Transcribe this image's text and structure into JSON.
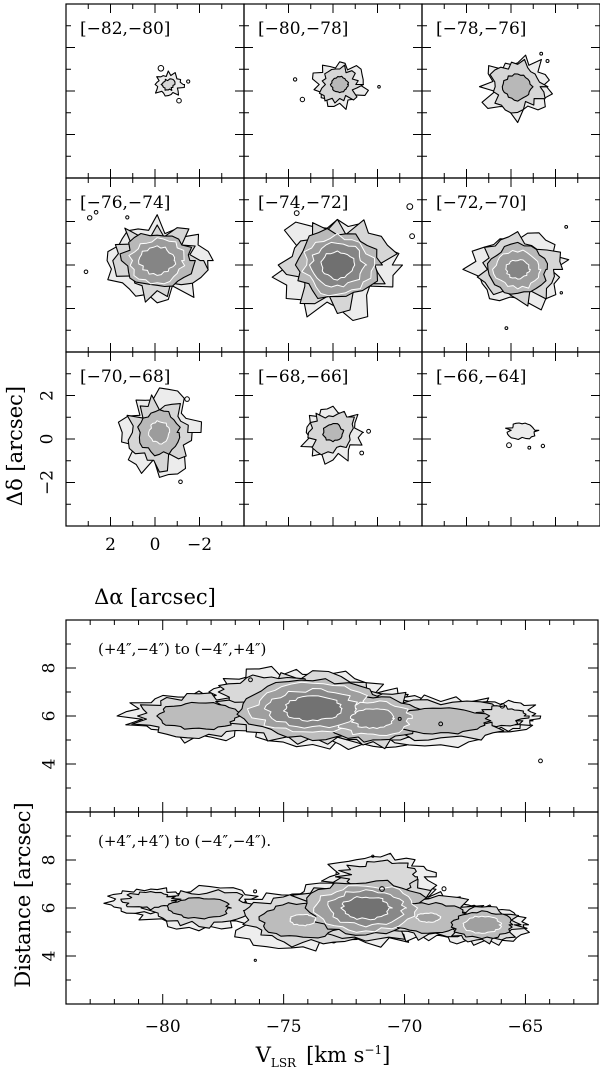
{
  "chart_data": [
    {
      "type": "heatmap",
      "description_of_values": "channel maps of integrated intensity, grayscale with contour levels",
      "grid": "3x3",
      "panels": [
        {
          "label": "[−82,−80]",
          "peak": 0.35,
          "cx": -0.6,
          "cy": 0.3,
          "rx": 0.7,
          "ry": 0.6
        },
        {
          "label": "[−80,−78]",
          "peak": 0.55,
          "cx": -0.3,
          "cy": 0.3,
          "rx": 1.2,
          "ry": 1.1
        },
        {
          "label": "[−78,−76]",
          "peak": 0.6,
          "cx": -0.3,
          "cy": 0.2,
          "rx": 1.5,
          "ry": 1.4
        },
        {
          "label": "[−76,−74]",
          "peak": 0.9,
          "cx": -0.1,
          "cy": 0.2,
          "rx": 2.2,
          "ry": 1.8
        },
        {
          "label": "[−74,−72]",
          "peak": 1.0,
          "cx": -0.2,
          "cy": 0.0,
          "rx": 2.5,
          "ry": 2.1
        },
        {
          "label": "[−72,−70]",
          "peak": 0.85,
          "cx": -0.3,
          "cy": -0.2,
          "rx": 2.0,
          "ry": 1.7
        },
        {
          "label": "[−70,−68]",
          "peak": 0.7,
          "cx": -0.2,
          "cy": 0.3,
          "rx": 1.6,
          "ry": 1.8
        },
        {
          "label": "[−68,−66]",
          "peak": 0.55,
          "cx": 0.0,
          "cy": 0.3,
          "rx": 1.4,
          "ry": 1.3
        },
        {
          "label": "[−66,−64]",
          "peak": 0.3,
          "cx": -0.5,
          "cy": 0.4,
          "rx": 0.8,
          "ry": 0.45
        }
      ],
      "xlabel": "Δα  [arcsec]",
      "ylabel": "Δδ  [arcsec]",
      "xticks": [
        "2",
        "0",
        "−2"
      ],
      "yticks": [
        "2",
        "0",
        "−2"
      ],
      "xlim": [
        4,
        -4
      ],
      "ylim": [
        -4,
        4
      ]
    },
    {
      "type": "heatmap",
      "description_of_values": "position-velocity diagrams along two cuts",
      "panels": [
        {
          "label": "(+4″,−4″) to (−4″,+4″)",
          "ridge": {
            "v": [
              -81.5,
              -79,
              -76,
              -73.5,
              -72,
              -70,
              -67.5,
              -65
            ],
            "d": [
              6.0,
              6.0,
              6.1,
              6.3,
              6.0,
              5.8,
              5.9,
              6.0
            ]
          },
          "components": [
            {
              "v": -78.5,
              "d": 6.0,
              "amp": 0.55,
              "sv": 1.5,
              "sd": 0.5
            },
            {
              "v": -73.8,
              "d": 6.3,
              "amp": 1.0,
              "sv": 1.8,
              "sd": 0.75
            },
            {
              "v": -71.3,
              "d": 5.9,
              "amp": 0.85,
              "sv": 1.3,
              "sd": 0.6
            },
            {
              "v": -68.5,
              "d": 5.8,
              "amp": 0.55,
              "sv": 1.8,
              "sd": 0.5
            },
            {
              "v": -75.5,
              "d": 7.0,
              "amp": 0.35,
              "sv": 1.5,
              "sd": 0.5
            },
            {
              "v": -66.0,
              "d": 6.0,
              "amp": 0.3,
              "sv": 0.9,
              "sd": 0.35
            }
          ]
        },
        {
          "label": "(+4″,+4″) to (−4″,−4″).",
          "components": [
            {
              "v": -78.5,
              "d": 6.0,
              "amp": 0.5,
              "sv": 1.3,
              "sd": 0.45
            },
            {
              "v": -74.2,
              "d": 5.5,
              "amp": 0.6,
              "sv": 1.4,
              "sd": 0.6
            },
            {
              "v": -71.6,
              "d": 6.0,
              "amp": 1.0,
              "sv": 1.5,
              "sd": 0.7
            },
            {
              "v": -69.0,
              "d": 5.6,
              "amp": 0.6,
              "sv": 1.3,
              "sd": 0.5
            },
            {
              "v": -66.8,
              "d": 5.3,
              "amp": 0.7,
              "sv": 0.9,
              "sd": 0.4
            },
            {
              "v": -80.5,
              "d": 6.3,
              "amp": 0.3,
              "sv": 1.0,
              "sd": 0.3
            },
            {
              "v": -71.0,
              "d": 7.3,
              "amp": 0.35,
              "sv": 1.2,
              "sd": 0.5
            }
          ]
        }
      ],
      "xlabel": "V",
      "xlabel_subscript": "LSR",
      "xlabel_units": "[km s",
      "xlabel_units_sup": "−1",
      "xlabel_units_close": "]",
      "ylabel": "Distance   [arcsec]",
      "xticks": [
        "−80",
        "−75",
        "−70",
        "−65"
      ],
      "xtick_values": [
        -80,
        -75,
        -70,
        -65
      ],
      "yticks": [
        "4",
        "6",
        "8"
      ],
      "ytick_values": [
        4,
        6,
        8
      ],
      "xlim": [
        -84,
        -62
      ],
      "ylim": [
        2,
        10
      ]
    }
  ]
}
